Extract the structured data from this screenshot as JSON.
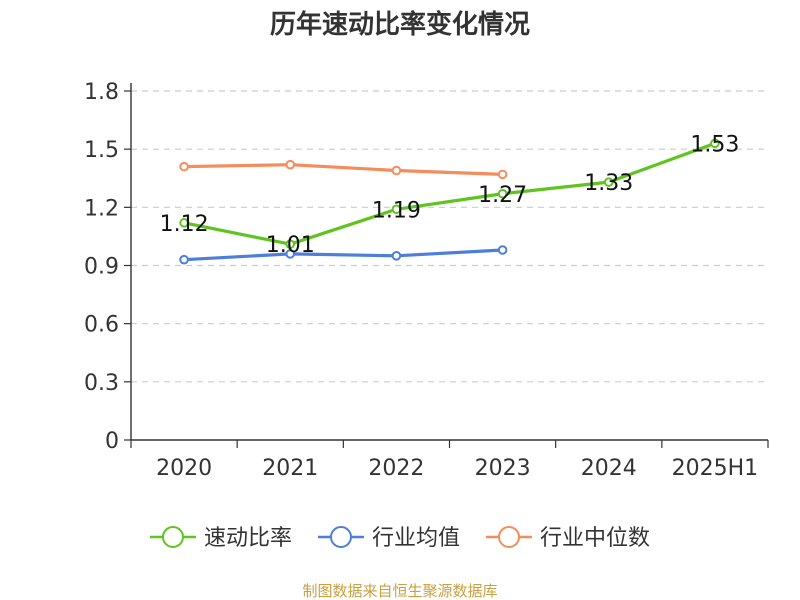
{
  "chart_data": {
    "type": "line",
    "title": "历年速动比率变化情况",
    "categories": [
      "2020",
      "2021",
      "2022",
      "2023",
      "2024",
      "2025H1"
    ],
    "ylim": [
      0,
      1.8
    ],
    "yticks": [
      "0",
      "0.3",
      "0.6",
      "0.9",
      "1.2",
      "1.5",
      "1.8"
    ],
    "grid": true,
    "legend_position": "bottom",
    "series": [
      {
        "name": "速动比率",
        "color": "#5fc320",
        "values": [
          1.12,
          1.01,
          1.19,
          1.27,
          1.33,
          1.53
        ],
        "labels": [
          "1.12",
          "1.01",
          "1.19",
          "1.27",
          "1.33",
          "1.53"
        ]
      },
      {
        "name": "行业均值",
        "color": "#4c7edc",
        "values": [
          0.93,
          0.96,
          0.95,
          0.98,
          null,
          null
        ]
      },
      {
        "name": "行业中位数",
        "color": "#f58c5c",
        "values": [
          1.41,
          1.42,
          1.39,
          1.37,
          null,
          null
        ]
      }
    ]
  },
  "source_text": "制图数据来自恒生聚源数据库",
  "source_color": "#c8a040"
}
